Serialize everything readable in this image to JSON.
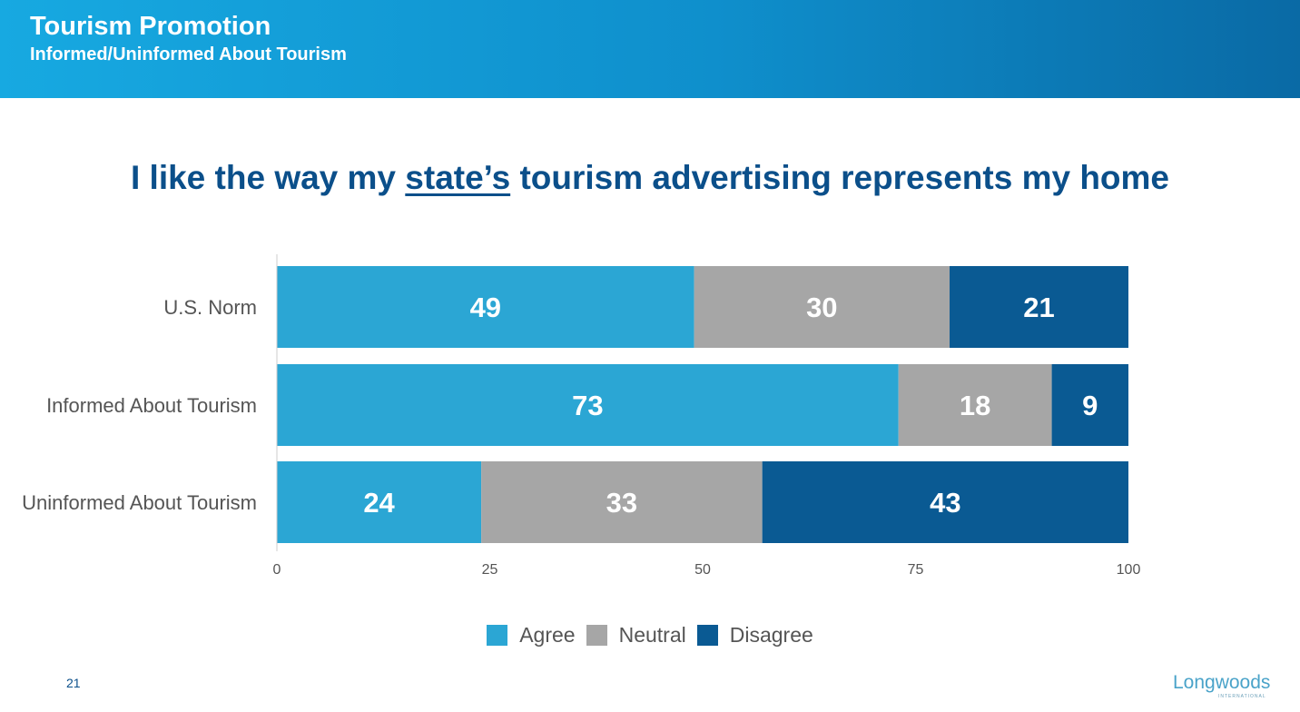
{
  "header": {
    "title": "Tourism Promotion",
    "subtitle": "Informed/Uninformed About Tourism"
  },
  "question": {
    "before": "I like the way my ",
    "underlined": "state’s",
    "after": " tourism advertising represents my home"
  },
  "page_number": "21",
  "logo": {
    "main": "Longwoods",
    "sub": "INTERNATIONAL"
  },
  "colors": {
    "agree": "#2ba6d4",
    "neutral": "#a6a6a6",
    "disagree": "#0a5a93"
  },
  "chart_data": {
    "type": "bar",
    "orientation": "horizontal",
    "stacked": true,
    "title": "I like the way my state’s tourism advertising represents my home",
    "categories": [
      "U.S. Norm",
      "Informed About Tourism",
      "Uninformed About Tourism"
    ],
    "series": [
      {
        "name": "Agree",
        "values": [
          49,
          73,
          24
        ]
      },
      {
        "name": "Neutral",
        "values": [
          30,
          18,
          33
        ]
      },
      {
        "name": "Disagree",
        "values": [
          21,
          9,
          43
        ]
      }
    ],
    "xlim": [
      0,
      100
    ],
    "xticks": [
      0,
      25,
      50,
      75,
      100
    ],
    "legend": "bottom",
    "grid": false
  }
}
